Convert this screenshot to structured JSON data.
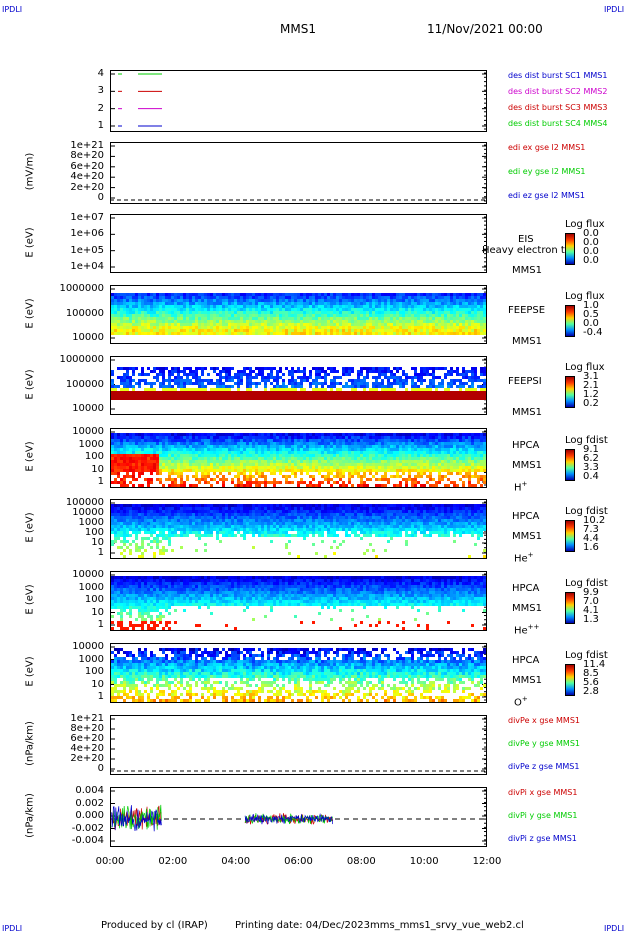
{
  "corners": {
    "tl": "IPDLI",
    "tr": "IPDLI",
    "bl": "IPDLI",
    "br": "IPDLI"
  },
  "header": {
    "spacecraft": "MMS1",
    "date": "11/Nov/2021 00:00"
  },
  "footer": {
    "producer": "Produced by cl (IRAP)",
    "printing": "Printing date: 04/Dec/2023",
    "file": "mms_mms1_srvy_vue_web2.cl"
  },
  "colors": {
    "red": "#cc0000",
    "green": "#00cc00",
    "blue": "#0000cc",
    "magenta": "#cc00cc"
  },
  "chart_data": [
    {
      "type": "line",
      "panel": "burst",
      "yticks": [
        "4",
        "3",
        "2",
        "1"
      ],
      "legend": [
        {
          "label": "des dist burst SC1 MMS1",
          "color": "#0000cc"
        },
        {
          "label": "des dist burst SC2 MMS2",
          "color": "#cc00cc"
        },
        {
          "label": "des dist burst SC3 MMS3",
          "color": "#cc0000"
        },
        {
          "label": "des dist burst SC4 MMS4",
          "color": "#00cc00"
        }
      ]
    },
    {
      "type": "line",
      "panel": "edi",
      "ylabel": "(mV/m)",
      "yticks": [
        "1e+21",
        "8e+20",
        "6e+20",
        "4e+20",
        "2e+20",
        "0"
      ],
      "legend": [
        {
          "label": "edi ex gse l2 MMS1",
          "color": "#cc0000"
        },
        {
          "label": "edi ey gse l2 MMS1",
          "color": "#00cc00"
        },
        {
          "label": "edi ez gse l2 MMS1",
          "color": "#0000cc"
        }
      ]
    },
    {
      "type": "heatmap",
      "panel": "eis",
      "ylabel": "E (eV)",
      "yticks": [
        "1e+07",
        "1e+06",
        "1e+05",
        "1e+04"
      ],
      "instrument": "EIS",
      "sc": "MMS1",
      "overlay": "Heavy electron to",
      "cb_title": "Log flux",
      "cb_values": [
        "0.0",
        "0.0",
        "0.0",
        "0.0"
      ]
    },
    {
      "type": "heatmap",
      "panel": "feepse",
      "ylabel": "E (eV)",
      "yticks": [
        "1000000",
        "100000",
        "10000"
      ],
      "instrument": "FEEPSE",
      "sc": "MMS1",
      "cb_title": "Log flux",
      "cb_values": [
        "1.0",
        "0.5",
        "0.0",
        "-0.4"
      ]
    },
    {
      "type": "heatmap",
      "panel": "feepsi",
      "ylabel": "E (eV)",
      "yticks": [
        "1000000",
        "100000",
        "10000"
      ],
      "instrument": "FEEPSI",
      "sc": "MMS1",
      "cb_title": "Log flux",
      "cb_values": [
        "3.1",
        "2.1",
        "1.2",
        "0.2"
      ]
    },
    {
      "type": "heatmap",
      "panel": "hpca_h",
      "ylabel": "E (eV)",
      "yticks": [
        "10000",
        "1000",
        "100",
        "10",
        "1"
      ],
      "instrument": "HPCA",
      "sc": "MMS1",
      "species": "H",
      "charge": "+",
      "cb_title": "Log fdist",
      "cb_values": [
        "9.1",
        "6.2",
        "3.3",
        "0.4"
      ]
    },
    {
      "type": "heatmap",
      "panel": "hpca_he",
      "ylabel": "E (eV)",
      "yticks": [
        "100000",
        "10000",
        "1000",
        "100",
        "10",
        "1"
      ],
      "instrument": "HPCA",
      "sc": "MMS1",
      "species": "He",
      "charge": "+",
      "cb_title": "Log fdist",
      "cb_values": [
        "10.2",
        "7.3",
        "4.4",
        "1.6"
      ]
    },
    {
      "type": "heatmap",
      "panel": "hpca_hepp",
      "ylabel": "E (eV)",
      "yticks": [
        "10000",
        "1000",
        "100",
        "10",
        "1"
      ],
      "instrument": "HPCA",
      "sc": "MMS1",
      "species": "He",
      "charge": "++",
      "cb_title": "Log fdist",
      "cb_values": [
        "9.9",
        "7.0",
        "4.1",
        "1.3"
      ]
    },
    {
      "type": "heatmap",
      "panel": "hpca_o",
      "ylabel": "E (eV)",
      "yticks": [
        "10000",
        "1000",
        "100",
        "10",
        "1"
      ],
      "instrument": "HPCA",
      "sc": "MMS1",
      "species": "O",
      "charge": "+",
      "cb_title": "Log fdist",
      "cb_values": [
        "11.4",
        "8.5",
        "5.6",
        "2.8"
      ]
    },
    {
      "type": "line",
      "panel": "divpe",
      "ylabel": "(nPa/km)",
      "yticks": [
        "1e+21",
        "8e+20",
        "6e+20",
        "4e+20",
        "2e+20",
        "0"
      ],
      "legend": [
        {
          "label": "divPe x gse MMS1",
          "color": "#cc0000"
        },
        {
          "label": "divPe y gse MMS1",
          "color": "#00cc00"
        },
        {
          "label": "divPe z gse MMS1",
          "color": "#0000cc"
        }
      ]
    },
    {
      "type": "line",
      "panel": "divpi",
      "ylabel": "(nPa/km)",
      "yticks": [
        "0.004",
        "0.002",
        "0.000",
        "-0.002",
        "-0.004"
      ],
      "legend": [
        {
          "label": "divPi x gse MMS1",
          "color": "#cc0000"
        },
        {
          "label": "divPi y gse MMS1",
          "color": "#00cc00"
        },
        {
          "label": "divPi z gse MMS1",
          "color": "#0000cc"
        }
      ]
    }
  ],
  "xaxis": {
    "ticks": [
      "00:00",
      "02:00",
      "04:00",
      "06:00",
      "08:00",
      "10:00",
      "12:00"
    ]
  }
}
